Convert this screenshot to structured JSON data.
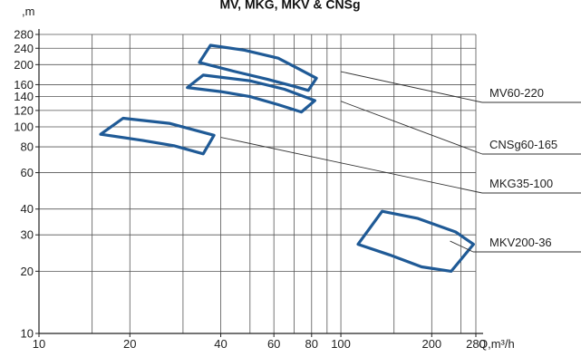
{
  "chart_data": {
    "type": "area",
    "title": "MV, MKG, MKV & CNSg",
    "xlabel": "Q,m³/h",
    "ylabel": ",m",
    "xscale": "log",
    "yscale": "log",
    "xlim": [
      10,
      280
    ],
    "ylim": [
      10,
      280
    ],
    "x_ticks": [
      10,
      20,
      40,
      60,
      80,
      100,
      200,
      280
    ],
    "x_tick_labels": [
      "10",
      "20",
      "40",
      "60",
      "80",
      "100",
      "200",
      "280"
    ],
    "y_ticks": [
      10,
      20,
      30,
      40,
      60,
      80,
      100,
      120,
      140,
      160,
      200,
      240,
      280
    ],
    "y_tick_labels": [
      "10",
      "20",
      "30",
      "40",
      "60",
      "80",
      "100",
      "120",
      "140",
      "160",
      "200",
      "240",
      "280"
    ],
    "x_gridlines": [
      10,
      15,
      20,
      30,
      40,
      50,
      60,
      70,
      80,
      90,
      100,
      150,
      200,
      250,
      280
    ],
    "grid": true,
    "series": [
      {
        "name": "MV60-220",
        "color": "#1f5a96",
        "polygon": [
          [
            34,
            205
          ],
          [
            37,
            248
          ],
          [
            48,
            235
          ],
          [
            62,
            215
          ],
          [
            72,
            192
          ],
          [
            83,
            172
          ],
          [
            78,
            150
          ],
          [
            70,
            157
          ],
          [
            57,
            170
          ],
          [
            44,
            186
          ]
        ]
      },
      {
        "name": "CNSg60-165",
        "color": "#1f5a96",
        "polygon": [
          [
            31,
            155
          ],
          [
            35,
            178
          ],
          [
            50,
            167
          ],
          [
            65,
            152
          ],
          [
            82,
            134
          ],
          [
            74,
            118
          ],
          [
            62,
            128
          ],
          [
            50,
            140
          ],
          [
            40,
            148
          ]
        ]
      },
      {
        "name": "MKG35-100",
        "color": "#1f5a96",
        "polygon": [
          [
            16,
            92
          ],
          [
            19,
            110
          ],
          [
            27,
            104
          ],
          [
            38,
            91
          ],
          [
            35,
            74
          ],
          [
            28,
            81
          ],
          [
            22,
            86
          ]
        ]
      },
      {
        "name": "MKV200-36",
        "color": "#1f5a96",
        "polygon": [
          [
            114,
            27
          ],
          [
            137,
            39
          ],
          [
            180,
            36
          ],
          [
            240,
            31
          ],
          [
            275,
            27
          ],
          [
            232,
            20
          ],
          [
            185,
            21
          ],
          [
            145,
            24
          ]
        ]
      }
    ],
    "labels": [
      {
        "text": "MV60-220",
        "anchor": [
          100,
          185
        ]
      },
      {
        "text": "CNSg60-165",
        "anchor": [
          100,
          133
        ]
      },
      {
        "text": "MKG35-100",
        "anchor": [
          40,
          89
        ]
      },
      {
        "text": "MKV200-36",
        "anchor": [
          230,
          28
        ]
      }
    ]
  }
}
